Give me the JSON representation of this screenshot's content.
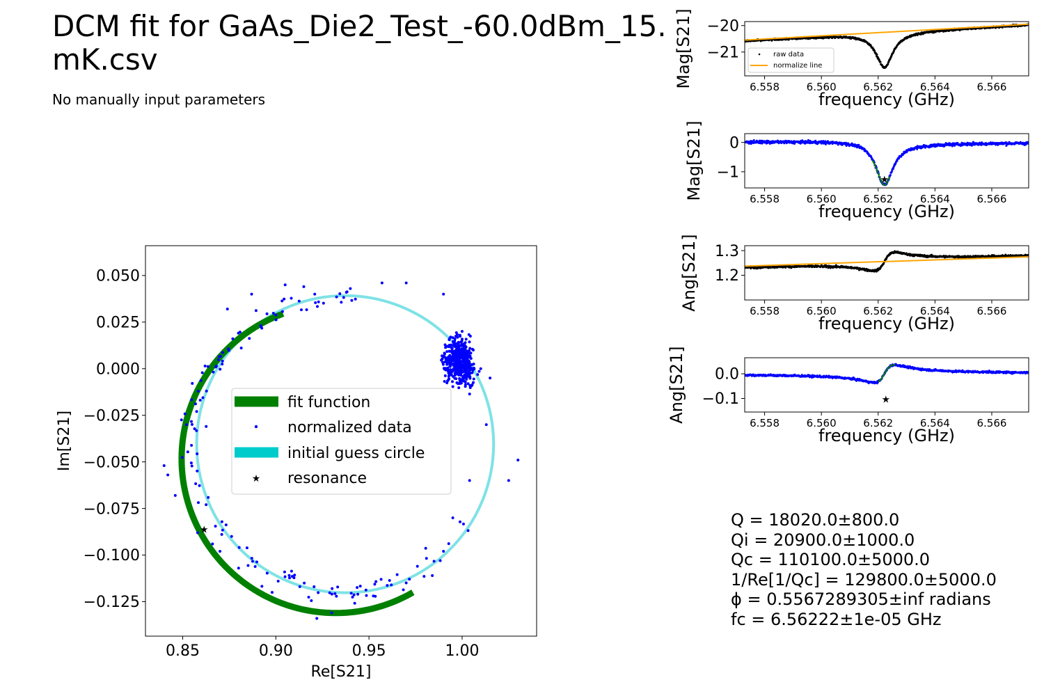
{
  "title": "DCM fit for GaAs_Die2_Test_-60.0dBm_15.\nmK.csv",
  "subtitle": "No manually input parameters",
  "colors": {
    "fit": "#008000",
    "normalized": "#0000ff",
    "raw": "#000000",
    "guess": "#00cccc",
    "guess_line": "#7fe2e6",
    "normalize_line": "#ffa500",
    "resonance": "#ff0000"
  },
  "stats": {
    "q": "Q = 18020.0±800.0",
    "qi": "Qi = 20900.0±1000.0",
    "qc": "Qc = 110100.0±5000.0",
    "reqc": "1/Re[1/Qc] = 129800.0±5000.0",
    "phi": "ϕ = 0.5567289305±inf radians",
    "fc": "fc = 6.56222±1e-05 GHz"
  },
  "chart_data": [
    {
      "type": "scatter",
      "id": "circle",
      "xlabel": "Re[S21]",
      "ylabel": "Im[S21]",
      "xlim": [
        0.83,
        1.04
      ],
      "ylim": [
        -0.1435,
        0.066
      ],
      "xticks": [
        0.85,
        0.9,
        0.95,
        1.0
      ],
      "xtick_labels": [
        "0.85",
        "0.90",
        "0.95",
        "1.00"
      ],
      "yticks": [
        0.05,
        0.025,
        0.0,
        -0.025,
        -0.05,
        -0.075,
        -0.1,
        -0.125
      ],
      "ytick_labels": [
        "0.050",
        "0.025",
        "0.000",
        "−0.025",
        "−0.050",
        "−0.075",
        "−0.100",
        "−0.125"
      ],
      "legend": {
        "placement": "center",
        "entries": [
          "fit function",
          "normalized data",
          "initial guess circle",
          "resonance"
        ]
      },
      "guess_circle": {
        "center": [
          0.9372,
          -0.0405
        ],
        "radius": 0.0797
      },
      "fit_arc": {
        "center": [
          0.9322,
          -0.0483
        ],
        "radius": 0.0828,
        "start_deg": 110,
        "end_deg": 300
      },
      "resonance": [
        0.8615,
        -0.0862
      ],
      "normalized_points_sample": [
        [
          0.84,
          -0.052
        ],
        [
          0.842,
          -0.057
        ],
        [
          0.846,
          -0.068
        ],
        [
          0.852,
          -0.03
        ],
        [
          0.858,
          -0.088
        ],
        [
          0.866,
          -0.094
        ],
        [
          0.87,
          -0.098
        ],
        [
          0.88,
          -0.107
        ],
        [
          0.898,
          -0.12
        ],
        [
          0.922,
          -0.134
        ],
        [
          0.93,
          -0.131
        ],
        [
          0.944,
          -0.121
        ],
        [
          0.962,
          -0.116
        ],
        [
          0.976,
          -0.106
        ],
        [
          0.984,
          -0.111
        ],
        [
          0.99,
          -0.098
        ],
        [
          0.995,
          -0.08
        ],
        [
          1.004,
          -0.06
        ],
        [
          1.013,
          -0.03
        ],
        [
          1.025,
          -0.06
        ],
        [
          1.03,
          -0.049
        ],
        [
          0.874,
          0.032
        ],
        [
          0.887,
          0.04
        ],
        [
          0.905,
          0.045
        ],
        [
          0.915,
          0.044
        ],
        [
          0.94,
          0.043
        ],
        [
          0.957,
          0.046
        ],
        [
          0.97,
          0.046
        ],
        [
          0.99,
          0.04
        ],
        [
          1.0,
          0.02
        ],
        [
          1.006,
          0.01
        ],
        [
          1.01,
          0.0
        ],
        [
          0.998,
          0.005
        ],
        [
          0.992,
          0.012
        ],
        [
          1.015,
          -0.005
        ]
      ]
    },
    {
      "type": "line",
      "id": "mag_raw",
      "xlabel": "frequency (GHz)",
      "ylabel": "Mag[S21]",
      "xlim": [
        6.5573,
        6.5673
      ],
      "ylim": [
        -21.9,
        -19.85
      ],
      "xticks": [
        6.558,
        6.56,
        6.562,
        6.564,
        6.566
      ],
      "xtick_labels": [
        "6.558",
        "6.560",
        "6.562",
        "6.564",
        "6.566"
      ],
      "yticks": [
        -20,
        -21
      ],
      "ytick_labels": [
        "−20",
        "−21"
      ],
      "legend": {
        "placement": "lower-left",
        "entries": [
          "raw data",
          "normalize line"
        ]
      },
      "normalize_line": {
        "x": [
          6.5573,
          6.5673
        ],
        "y": [
          -20.55,
          -19.95
        ]
      },
      "resonance_f0": 6.56222,
      "baseline": {
        "x": [
          6.5573,
          6.5615,
          6.5673
        ],
        "y": [
          -20.58,
          -20.32,
          -19.97
        ]
      },
      "dip_depth": -1.3,
      "linewidth": 0.00036
    },
    {
      "type": "line",
      "id": "mag_norm",
      "xlabel": "frequency (GHz)",
      "ylabel": "Mag[S21]",
      "xlim": [
        6.5573,
        6.5673
      ],
      "ylim": [
        -1.55,
        0.3
      ],
      "xticks": [
        6.558,
        6.56,
        6.562,
        6.564,
        6.566
      ],
      "xtick_labels": [
        "6.558",
        "6.560",
        "6.562",
        "6.564",
        "6.566"
      ],
      "yticks": [
        0,
        -1
      ],
      "ytick_labels": [
        "0",
        "−1"
      ],
      "resonance": [
        6.56222,
        -1.25
      ],
      "fit_range": [
        6.5618,
        6.5624
      ],
      "resonance_f0": 6.56222,
      "dip_depth": -1.45,
      "linewidth": 0.00036
    },
    {
      "type": "line",
      "id": "ang_raw",
      "xlabel": "frequency (GHz)",
      "ylabel": "Ang[S21]",
      "xlim": [
        6.5573,
        6.5673
      ],
      "ylim": [
        1.1,
        1.32
      ],
      "xticks": [
        6.558,
        6.56,
        6.562,
        6.564,
        6.566
      ],
      "xtick_labels": [
        "6.558",
        "6.560",
        "6.562",
        "6.564",
        "6.566"
      ],
      "yticks": [
        1.3,
        1.2
      ],
      "ytick_labels": [
        "1.3",
        "1.2"
      ],
      "normalize_line": {
        "x": [
          6.5573,
          6.5673
        ],
        "y": [
          1.237,
          1.275
        ]
      },
      "resonance_f0": 6.56222,
      "amplitude": 0.072,
      "linewidth": 0.00036
    },
    {
      "type": "line",
      "id": "ang_norm",
      "xlabel": "frequency (GHz)",
      "ylabel": "Ang[S21]",
      "xlim": [
        6.5573,
        6.5673
      ],
      "ylim": [
        -0.155,
        0.065
      ],
      "xticks": [
        6.558,
        6.56,
        6.562,
        6.564,
        6.566
      ],
      "xtick_labels": [
        "6.558",
        "6.560",
        "6.562",
        "6.564",
        "6.566"
      ],
      "yticks": [
        0.0,
        -0.1
      ],
      "ytick_labels": [
        "0.0",
        "−0.1"
      ],
      "resonance": [
        6.56227,
        -0.103
      ],
      "fit_range": [
        6.562,
        6.5626
      ],
      "resonance_f0": 6.56222,
      "amplitude": 0.072,
      "linewidth": 0.00036
    }
  ]
}
